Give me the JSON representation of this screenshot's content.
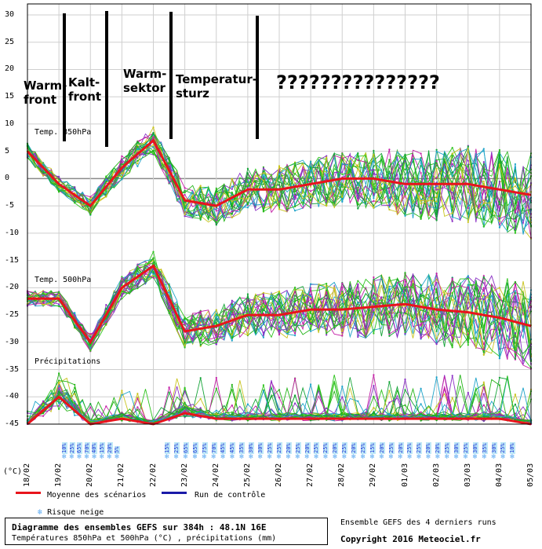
{
  "unit_label": "(°C)",
  "y_ticks": [
    "30",
    "25",
    "20",
    "15",
    "10",
    "5",
    "0",
    "-5",
    "-10",
    "-15",
    "-20",
    "-25",
    "-30",
    "-35",
    "-40",
    "-45"
  ],
  "x_ticks": [
    "18/02",
    "19/02",
    "20/02",
    "21/02",
    "22/02",
    "23/02",
    "24/02",
    "25/02",
    "26/02",
    "27/02",
    "28/02",
    "29/02",
    "01/03",
    "02/03",
    "03/03",
    "04/03",
    "05/03"
  ],
  "panels": {
    "t850": "Temp. 850hPa",
    "t500": "Temp. 500hPa",
    "precip": "Précipitations"
  },
  "annotations": {
    "warmfront": "Warm-\nfront",
    "kaltfront": "Kalt-\nfront",
    "warmsektor": "Warm-\nsektor",
    "temperatursturz": "Temperatur-\nsturz",
    "questions": "???????????????"
  },
  "snow_risk": {
    "label": "Risque neige",
    "group1": [
      "10%",
      "25%",
      "65%",
      "70%",
      "40%",
      "15%",
      "20%",
      "5%"
    ],
    "group2": [
      "15%",
      "25%",
      "65%",
      "65%",
      "75%",
      "70%",
      "45%",
      "45%",
      "35%",
      "30%",
      "30%",
      "25%",
      "25%",
      "20%",
      "25%",
      "20%",
      "25%",
      "25%",
      "20%",
      "25%",
      "20%",
      "25%",
      "15%",
      "20%",
      "25%",
      "20%",
      "25%",
      "25%",
      "20%",
      "20%",
      "25%",
      "30%",
      "25%",
      "30%",
      "35%",
      "30%",
      "25%",
      "10%"
    ]
  },
  "legend": {
    "mean": "Moyenne des scénarios",
    "control": "Run de contrôle",
    "mean_color": "#e8141c",
    "control_color": "#1a1aa8"
  },
  "footer": {
    "title": "Diagramme des ensembles GEFS sur 384h : 48.1N 16E",
    "subtitle": "Températures 850hPa et 500hPa (°C) , précipitations (mm)",
    "runs": "Ensemble GEFS des 4 derniers runs",
    "copyright": "Copyright 2016 Meteociel.fr"
  },
  "colors": {
    "grid": "#cfcfcf",
    "members": [
      "#2ec41e",
      "#24b418",
      "#13a336",
      "#1ea3c9",
      "#c9c41e",
      "#c41ea6",
      "#8a2ec4"
    ]
  },
  "chart_data": {
    "type": "line",
    "title": "Diagramme des ensembles GEFS sur 384h : 48.1N 16E",
    "xlabel": "",
    "ylabel": "(°C)",
    "ylim": [
      -45,
      30
    ],
    "categories": [
      "18/02",
      "19/02",
      "20/02",
      "21/02",
      "22/02",
      "23/02",
      "24/02",
      "25/02",
      "26/02",
      "27/02",
      "28/02",
      "29/02",
      "01/03",
      "02/03",
      "03/03",
      "04/03",
      "05/03"
    ],
    "grid": true,
    "legend_position": "bottom-left",
    "series": [
      {
        "name": "Moyenne des scénarios",
        "panel": "Temp. 850hPa",
        "values": [
          5,
          -1,
          -5,
          2,
          7,
          -4,
          -5,
          -2,
          -2,
          -1,
          0,
          0,
          -1,
          -1,
          -1,
          -2,
          -3
        ]
      },
      {
        "name": "Moyenne des scénarios",
        "panel": "Temp. 500hPa",
        "values": [
          -22,
          -22,
          -30,
          -20,
          -16,
          -28,
          -27,
          -25,
          -25,
          -24,
          -24,
          -23.5,
          -23,
          -24,
          -24.5,
          -25.5,
          -27
        ]
      },
      {
        "name": "Moyenne des scénarios",
        "panel": "Précipitations",
        "values": [
          -45,
          -40,
          -45,
          -44,
          -45,
          -43,
          -44,
          -44,
          -44,
          -44,
          -44,
          -44,
          -44,
          -44,
          -44,
          -44,
          -45
        ]
      }
    ]
  }
}
